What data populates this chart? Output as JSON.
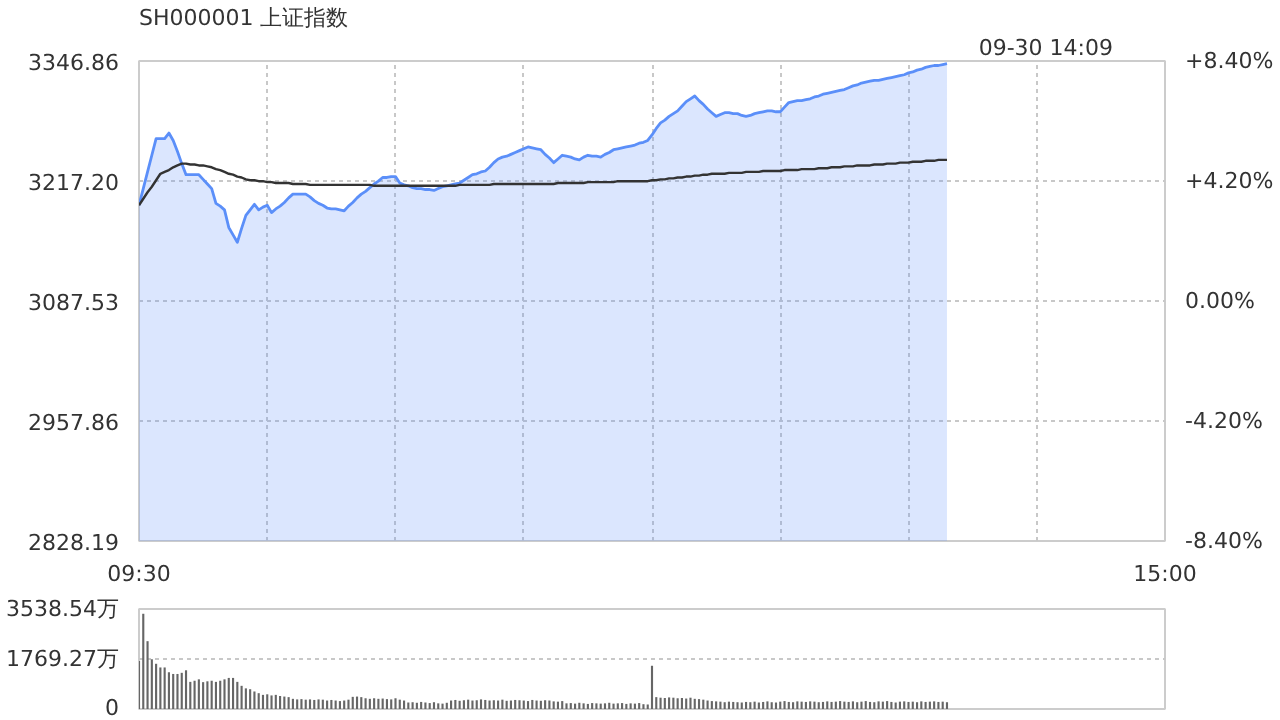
{
  "chart_data": [
    {
      "type": "area",
      "title": "SH000001 上证指数",
      "annotations": [
        "09-30 14:09"
      ],
      "categories": [
        "09:30",
        null,
        null,
        null,
        null,
        null,
        null,
        null,
        null,
        null,
        null,
        null,
        null,
        null,
        null,
        null,
        null,
        null,
        null,
        null,
        null,
        null,
        null,
        null,
        null,
        null,
        null,
        null,
        null,
        null,
        null,
        null,
        null,
        null,
        null,
        null,
        null,
        null,
        null,
        null,
        null,
        null,
        null,
        null,
        null,
        null,
        null,
        null,
        null,
        null,
        null,
        null,
        null,
        null,
        null,
        null,
        null,
        null,
        null,
        null,
        null,
        null,
        null,
        null,
        null,
        null,
        null,
        null,
        null,
        null,
        null,
        null,
        null,
        null,
        null,
        null,
        null,
        null,
        null,
        null,
        null,
        null,
        null,
        null,
        null,
        null,
        null,
        null,
        null,
        null,
        null,
        null,
        null,
        null,
        null,
        null,
        null,
        null,
        null,
        null,
        null,
        null,
        null,
        null,
        null,
        null,
        null,
        null,
        null,
        null,
        null,
        null,
        null,
        null,
        null,
        null,
        null,
        null,
        null,
        null,
        null,
        null,
        null,
        null,
        null,
        null,
        null,
        null,
        null,
        null,
        null,
        null,
        null,
        null,
        null,
        null,
        null,
        null,
        null,
        null,
        null,
        null,
        null,
        null,
        null,
        null,
        null,
        null,
        null,
        null,
        null,
        null,
        null,
        null,
        null,
        null,
        null,
        null,
        null,
        null,
        null,
        null,
        null,
        null,
        null,
        null,
        null,
        null,
        null,
        null,
        null,
        null,
        null,
        null,
        null,
        null,
        null,
        null,
        null,
        null,
        null,
        null,
        null,
        null,
        null,
        null,
        null,
        null,
        null,
        null,
        null,
        null,
        null,
        null,
        null,
        null,
        null,
        null,
        null,
        null,
        null,
        null,
        null,
        null,
        null,
        null,
        null,
        null,
        null,
        null,
        null,
        null,
        null,
        null,
        null,
        null,
        null,
        null,
        null,
        null,
        null,
        null,
        null,
        null,
        null,
        null,
        null,
        null,
        null,
        null,
        null,
        null,
        null,
        null,
        null,
        null,
        null,
        null,
        null,
        null,
        "15:00"
      ],
      "ylim": [
        2828.19,
        3346.86
      ],
      "yticks": [
        {
          "value": 2828.19,
          "label": "2828.19"
        },
        {
          "value": 2957.86,
          "label": "2957.86"
        },
        {
          "value": 3087.53,
          "label": "3087.53"
        },
        {
          "value": 3217.2,
          "label": "3217.20"
        },
        {
          "value": 3346.86,
          "label": "3346.86"
        }
      ],
      "y2lim": [
        -8.4,
        8.4
      ],
      "y2ticks": [
        {
          "value": -8.4,
          "label": "-8.40%"
        },
        {
          "value": -4.2,
          "label": "-4.20%"
        },
        {
          "value": 0,
          "label": "0.00%"
        },
        {
          "value": 4.2,
          "label": "+4.20%"
        },
        {
          "value": 8.4,
          "label": "+8.40%"
        }
      ],
      "grid": true,
      "series": [
        {
          "type": "area",
          "color": "#5b8ff9",
          "values": [
            3191,
            3209,
            3227,
            3245,
            3263,
            3263,
            3263,
            3269,
            3261,
            3249,
            3236,
            3224,
            3224,
            3224,
            3224,
            3219,
            3214,
            3209,
            3193,
            3190,
            3186,
            3167,
            3159,
            3151,
            3166,
            3180,
            3186,
            3192,
            3186,
            3189,
            3191,
            3183,
            3187,
            3190,
            3194,
            3199,
            3203,
            3203,
            3203,
            3203,
            3200,
            3196,
            3193,
            3191,
            3188,
            3187,
            3187,
            3186,
            3185,
            3190,
            3194,
            3199,
            3203,
            3206,
            3210,
            3214,
            3217,
            3221,
            3221,
            3222,
            3222,
            3215,
            3213,
            3212,
            3210,
            3209,
            3209,
            3208,
            3208,
            3207,
            3209,
            3211,
            3212,
            3213,
            3214,
            3215,
            3218,
            3221,
            3224,
            3225,
            3227,
            3228,
            3232,
            3237,
            3241,
            3243,
            3244,
            3246,
            3248,
            3250,
            3252,
            3254,
            3253,
            3252,
            3251,
            3246,
            3242,
            3237,
            3241,
            3245,
            3244,
            3243,
            3241,
            3240,
            3243,
            3245,
            3244,
            3244,
            3243,
            3246,
            3248,
            3251,
            3252,
            3253,
            3254,
            3255,
            3256,
            3258,
            3259,
            3261,
            3267,
            3274,
            3280,
            3283,
            3287,
            3290,
            3293,
            3298,
            3303,
            3306,
            3309,
            3304,
            3300,
            3295,
            3291,
            3287,
            3289,
            3291,
            3291,
            3290,
            3290,
            3288,
            3287,
            3288,
            3290,
            3291,
            3292,
            3293,
            3293,
            3292,
            3292,
            3297,
            3302,
            3303,
            3304,
            3304,
            3305,
            3306,
            3308,
            3309,
            3311,
            3312,
            3313,
            3314,
            3315,
            3316,
            3318,
            3320,
            3321,
            3323,
            3324,
            3325,
            3326,
            3326,
            3327,
            3328,
            3329,
            3330,
            3331,
            3332,
            3334,
            3335,
            3337,
            3338,
            3340,
            3341,
            3342,
            3342,
            3343,
            3344,
            null,
            null,
            null,
            null,
            null,
            null,
            null,
            null,
            null,
            null,
            null,
            null,
            null,
            null,
            null,
            null,
            null,
            null,
            null,
            null,
            null,
            null,
            null,
            null,
            null,
            null,
            null,
            null,
            null,
            null,
            null,
            null,
            null,
            null,
            null,
            null,
            null,
            null,
            null,
            null,
            null,
            null,
            null,
            null,
            null,
            null,
            null,
            null,
            null,
            null,
            null
          ]
        },
        {
          "type": "line",
          "color": "#333333",
          "values": [
            3191,
            3198,
            3205,
            3211,
            3218,
            3225,
            3227,
            3229,
            3232,
            3234,
            3236,
            3236,
            3235,
            3235,
            3234,
            3234,
            3233,
            3232,
            3230,
            3229,
            3227,
            3225,
            3224,
            3222,
            3221,
            3219,
            3218,
            3218,
            3217,
            3217,
            3216,
            3216,
            3215,
            3215,
            3215,
            3215,
            3214,
            3214,
            3214,
            3214,
            3213,
            3213,
            3213,
            3213,
            3213,
            3213,
            3213,
            3213,
            3213,
            3213,
            3213,
            3213,
            3213,
            3213,
            3213,
            3212,
            3212,
            3212,
            3212,
            3212,
            3212,
            3212,
            3212,
            3212,
            3212,
            3212,
            3212,
            3212,
            3212,
            3212,
            3212,
            3212,
            3212,
            3212,
            3212,
            3213,
            3213,
            3213,
            3213,
            3213,
            3213,
            3213,
            3213,
            3214,
            3214,
            3214,
            3214,
            3214,
            3214,
            3214,
            3214,
            3214,
            3214,
            3214,
            3214,
            3214,
            3214,
            3214,
            3215,
            3215,
            3215,
            3215,
            3215,
            3215,
            3215,
            3216,
            3216,
            3216,
            3216,
            3216,
            3216,
            3216,
            3217,
            3217,
            3217,
            3217,
            3217,
            3217,
            3217,
            3217,
            3218,
            3218,
            3219,
            3219,
            3220,
            3220,
            3221,
            3221,
            3222,
            3222,
            3223,
            3223,
            3224,
            3224,
            3225,
            3225,
            3225,
            3225,
            3226,
            3226,
            3226,
            3226,
            3227,
            3227,
            3227,
            3227,
            3228,
            3228,
            3228,
            3228,
            3228,
            3229,
            3229,
            3229,
            3229,
            3230,
            3230,
            3230,
            3230,
            3231,
            3231,
            3231,
            3232,
            3232,
            3232,
            3233,
            3233,
            3233,
            3234,
            3234,
            3234,
            3234,
            3235,
            3235,
            3235,
            3236,
            3236,
            3236,
            3237,
            3237,
            3237,
            3238,
            3238,
            3238,
            3239,
            3239,
            3239,
            3240,
            3240,
            3240,
            null,
            null,
            null,
            null,
            null,
            null,
            null,
            null,
            null,
            null,
            null,
            null,
            null,
            null,
            null,
            null,
            null,
            null,
            null,
            null,
            null,
            null,
            null,
            null,
            null,
            null,
            null,
            null,
            null,
            null,
            null,
            null,
            null,
            null,
            null,
            null,
            null,
            null,
            null,
            null,
            null,
            null,
            null,
            null,
            null,
            null,
            null,
            null,
            null,
            null,
            null
          ]
        }
      ]
    },
    {
      "type": "bar",
      "color": "#666666",
      "ylim": [
        0,
        3538.54
      ],
      "yticks": [
        0,
        {
          "value": 1769.27,
          "label": "1769.27万"
        },
        {
          "value": 3538.54,
          "label": "3538.54万"
        }
      ],
      "grid": "y",
      "tick_labels": "y",
      "categories": [
        null,
        null,
        null,
        null,
        null,
        null,
        null,
        null,
        null,
        null,
        null,
        null,
        null,
        null,
        null,
        null,
        null,
        null,
        null,
        null,
        null,
        null,
        null,
        null,
        null,
        null,
        null,
        null,
        null,
        null,
        null,
        null,
        null,
        null,
        null,
        null,
        null,
        null,
        null,
        null,
        null,
        null,
        null,
        null,
        null,
        null,
        null,
        null,
        null,
        null,
        null,
        null,
        null,
        null,
        null,
        null,
        null,
        null,
        null,
        null,
        null,
        null,
        null,
        null,
        null,
        null,
        null,
        null,
        null,
        null,
        null,
        null,
        null,
        null,
        null,
        null,
        null,
        null,
        null,
        null,
        null,
        null,
        null,
        null,
        null,
        null,
        null,
        null,
        null,
        null,
        null,
        null,
        null,
        null,
        null,
        null,
        null,
        null,
        null,
        null,
        null,
        null,
        null,
        null,
        null,
        null,
        null,
        null,
        null,
        null,
        null,
        null,
        null,
        null,
        null,
        null,
        null,
        null,
        null,
        null,
        null,
        null,
        null,
        null,
        null,
        null,
        null,
        null,
        null,
        null,
        null,
        null,
        null,
        null,
        null,
        null,
        null,
        null,
        null,
        null,
        null,
        null,
        null,
        null,
        null,
        null,
        null,
        null,
        null,
        null,
        null,
        null,
        null,
        null,
        null,
        null,
        null,
        null,
        null,
        null,
        null,
        null,
        null,
        null,
        null,
        null,
        null,
        null,
        null,
        null,
        null,
        null,
        null,
        null,
        null,
        null,
        null,
        null,
        null,
        null,
        null,
        null,
        null,
        null,
        null,
        null,
        null,
        null,
        null,
        null,
        null,
        null,
        null,
        null,
        null,
        null,
        null,
        null,
        null,
        null,
        null,
        null,
        null,
        null,
        null,
        null,
        null,
        null,
        null,
        null,
        null,
        null,
        null,
        null,
        null,
        null,
        null,
        null,
        null,
        null,
        null,
        null,
        null,
        null,
        null,
        null,
        null,
        null,
        null,
        null,
        null,
        null,
        null,
        null,
        null,
        null,
        null,
        null,
        null,
        null,
        null
      ],
      "values": [
        1700,
        3370,
        2400,
        1760,
        1600,
        1470,
        1470,
        1300,
        1240,
        1240,
        1280,
        1370,
        960,
        1000,
        1050,
        950,
        980,
        1000,
        960,
        1000,
        1050,
        1100,
        1100,
        960,
        820,
        730,
        700,
        620,
        560,
        500,
        520,
        480,
        500,
        460,
        440,
        420,
        360,
        340,
        350,
        330,
        340,
        320,
        340,
        330,
        300,
        320,
        300,
        280,
        300,
        330,
        430,
        440,
        420,
        380,
        360,
        380,
        360,
        370,
        350,
        340,
        380,
        330,
        300,
        230,
        240,
        220,
        250,
        230,
        210,
        240,
        200,
        190,
        220,
        300,
        320,
        290,
        310,
        330,
        300,
        310,
        340,
        320,
        300,
        310,
        300,
        330,
        290,
        300,
        320,
        310,
        300,
        280,
        320,
        300,
        290,
        310,
        300,
        270,
        260,
        280,
        200,
        210,
        190,
        220,
        200,
        180,
        210,
        200,
        190,
        200,
        220,
        190,
        200,
        210,
        180,
        200,
        190,
        210,
        170,
        160,
        1530,
        420,
        400,
        390,
        410,
        400,
        380,
        390,
        370,
        400,
        360,
        350,
        330,
        300,
        280,
        270,
        260,
        240,
        260,
        250,
        240,
        230,
        250,
        240,
        260,
        230,
        250,
        270,
        240,
        230,
        260,
        280,
        250,
        240,
        270,
        260,
        250,
        270,
        260,
        240,
        250,
        270,
        250,
        260,
        280,
        260,
        250,
        270,
        240,
        260,
        280,
        250,
        240,
        270,
        260,
        280,
        250,
        230,
        260,
        270,
        250,
        260,
        240,
        270,
        250,
        260,
        270,
        250,
        260,
        240,
        null,
        null,
        null,
        null,
        null,
        null,
        null,
        null,
        null,
        null,
        null,
        null,
        null,
        null,
        null,
        null,
        null,
        null,
        null,
        null,
        null,
        null,
        null,
        null,
        null,
        null,
        null,
        null,
        null,
        null,
        null,
        null,
        null,
        null,
        null,
        null,
        null,
        null,
        null,
        null,
        null,
        null,
        null,
        null,
        null,
        null,
        null,
        null,
        null,
        null,
        null
      ]
    }
  ]
}
